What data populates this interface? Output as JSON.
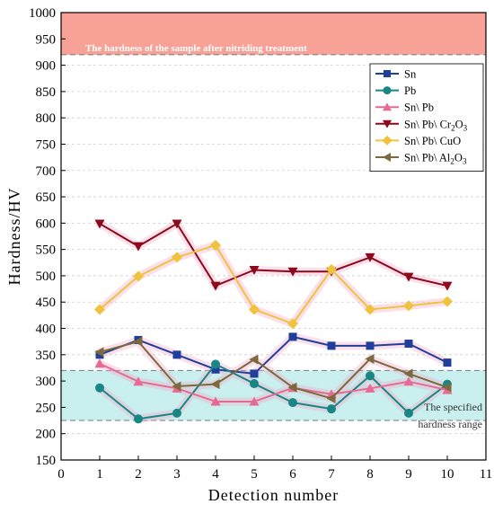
{
  "chart_data": {
    "type": "line",
    "xlabel": "Detection number",
    "ylabel": "Hardness/HV",
    "xlim": [
      0,
      11
    ],
    "ylim": [
      150,
      1000
    ],
    "xticks": [
      "0",
      "1",
      "2",
      "3",
      "4",
      "5",
      "6",
      "7",
      "8",
      "9",
      "10",
      "11"
    ],
    "yticks": [
      "150",
      "200",
      "250",
      "300",
      "350",
      "400",
      "450",
      "500",
      "550",
      "600",
      "650",
      "700",
      "750",
      "800",
      "850",
      "900",
      "950",
      "1000"
    ],
    "grid": "horizontal dashed",
    "legend_position": "top-right",
    "band_top": {
      "range": [
        920,
        1000
      ],
      "label": "The hardness of the sample after nitriding treatment",
      "color": "#f8a297"
    },
    "band_spec": {
      "range": [
        225,
        320
      ],
      "label_line1": "The specified",
      "label_line2": "hardness range",
      "color": "#c9efee"
    },
    "x": [
      1,
      2,
      3,
      4,
      5,
      6,
      7,
      8,
      9,
      10
    ],
    "series": [
      {
        "name": "Sn",
        "name_sub": "",
        "name_tail": "",
        "color": "#1f3f9a",
        "marker": "square",
        "values": [
          350,
          378,
          350,
          322,
          314,
          384,
          367,
          367,
          371,
          335
        ]
      },
      {
        "name": "Pb",
        "name_sub": "",
        "name_tail": "",
        "color": "#1a8585",
        "marker": "circle",
        "values": [
          287,
          228,
          239,
          332,
          295,
          259,
          247,
          310,
          239,
          294
        ]
      },
      {
        "name": "Sn\\ Pb",
        "name_sub": "",
        "name_tail": "",
        "color": "#e66a93",
        "marker": "triangle-up",
        "values": [
          333,
          299,
          286,
          261,
          261,
          287,
          275,
          286,
          299,
          283
        ]
      },
      {
        "name": "Sn\\ Pb\\ Cr",
        "name_sub": "2",
        "name_tail": "O",
        "name_sub2": "3",
        "color": "#8b0a1c",
        "marker": "triangle-down",
        "values": [
          599,
          556,
          599,
          481,
          511,
          508,
          508,
          535,
          498,
          481
        ]
      },
      {
        "name": "Sn\\ Pb\\ CuO",
        "name_sub": "",
        "name_tail": "",
        "color": "#f0c33c",
        "marker": "diamond",
        "values": [
          436,
          499,
          535,
          558,
          436,
          409,
          512,
          436,
          443,
          451
        ]
      },
      {
        "name": "Sn\\ Pb\\ Al",
        "name_sub": "2",
        "name_tail": "O",
        "name_sub2": "3",
        "color": "#7a6a3e",
        "marker": "triangle-left",
        "values": [
          355,
          375,
          290,
          294,
          341,
          288,
          267,
          342,
          314,
          288
        ]
      }
    ]
  }
}
